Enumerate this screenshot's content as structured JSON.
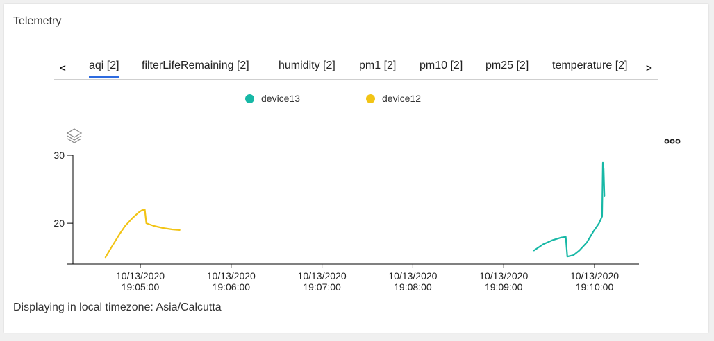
{
  "title": "Telemetry",
  "tabs": {
    "prev_label": "<",
    "next_label": ">",
    "items": [
      {
        "label": "aqi [2]",
        "active": true
      },
      {
        "label": "filterLifeRemaining [2]",
        "active": false
      },
      {
        "label": "humidity [2]",
        "active": false
      },
      {
        "label": "pm1 [2]",
        "active": false
      },
      {
        "label": "pm10 [2]",
        "active": false
      },
      {
        "label": "pm25 [2]",
        "active": false
      },
      {
        "label": "temperature [2]",
        "active": false
      }
    ]
  },
  "legend": [
    {
      "name": "device13",
      "color": "#17b8a6"
    },
    {
      "name": "device12",
      "color": "#f2c415"
    }
  ],
  "icons": {
    "layers": "layers-icon",
    "more": "more-options-icon"
  },
  "footer": "Displaying in local timezone: Asia/Calcutta",
  "chart_data": {
    "type": "line",
    "title": "",
    "xlabel": "",
    "ylabel": "",
    "ylim": [
      14,
      30
    ],
    "yticks": [
      20,
      30
    ],
    "xticks": [
      {
        "value": "2020-10-13T19:05:00",
        "line1": "10/13/2020",
        "line2": "19:05:00"
      },
      {
        "value": "2020-10-13T19:06:00",
        "line1": "10/13/2020",
        "line2": "19:06:00"
      },
      {
        "value": "2020-10-13T19:07:00",
        "line1": "10/13/2020",
        "line2": "19:07:00"
      },
      {
        "value": "2020-10-13T19:08:00",
        "line1": "10/13/2020",
        "line2": "19:08:00"
      },
      {
        "value": "2020-10-13T19:09:00",
        "line1": "10/13/2020",
        "line2": "19:09:00"
      },
      {
        "value": "2020-10-13T19:10:00",
        "line1": "10/13/2020",
        "line2": "19:10:00"
      }
    ],
    "grid": false,
    "legend_position": "top",
    "series": [
      {
        "name": "device12",
        "color": "#f2c415",
        "points": [
          [
            "2020-10-13T19:04:37",
            15.0
          ],
          [
            "2020-10-13T19:04:41",
            16.5
          ],
          [
            "2020-10-13T19:04:46",
            18.3
          ],
          [
            "2020-10-13T19:04:50",
            19.6
          ],
          [
            "2020-10-13T19:04:55",
            20.8
          ],
          [
            "2020-10-13T19:04:59",
            21.6
          ],
          [
            "2020-10-13T19:05:01",
            21.9
          ],
          [
            "2020-10-13T19:05:03",
            22.0
          ],
          [
            "2020-10-13T19:05:04",
            20.0
          ],
          [
            "2020-10-13T19:05:09",
            19.6
          ],
          [
            "2020-10-13T19:05:15",
            19.3
          ],
          [
            "2020-10-13T19:05:21",
            19.1
          ],
          [
            "2020-10-13T19:05:26",
            19.0
          ]
        ]
      },
      {
        "name": "device13",
        "color": "#17b8a6",
        "points": [
          [
            "2020-10-13T19:09:20",
            16.0
          ],
          [
            "2020-10-13T19:09:26",
            16.9
          ],
          [
            "2020-10-13T19:09:32",
            17.5
          ],
          [
            "2020-10-13T19:09:38",
            17.9
          ],
          [
            "2020-10-13T19:09:41",
            18.0
          ],
          [
            "2020-10-13T19:09:42",
            15.1
          ],
          [
            "2020-10-13T19:09:46",
            15.3
          ],
          [
            "2020-10-13T19:09:50",
            16.0
          ],
          [
            "2020-10-13T19:09:55",
            17.2
          ],
          [
            "2020-10-13T19:09:59",
            18.7
          ],
          [
            "2020-10-13T19:10:03",
            20.0
          ],
          [
            "2020-10-13T19:10:05",
            21.0
          ],
          [
            "2020-10-13T19:10:05.5",
            28.9
          ],
          [
            "2020-10-13T19:10:06",
            28.0
          ],
          [
            "2020-10-13T19:10:06.5",
            24.0
          ]
        ]
      }
    ]
  }
}
